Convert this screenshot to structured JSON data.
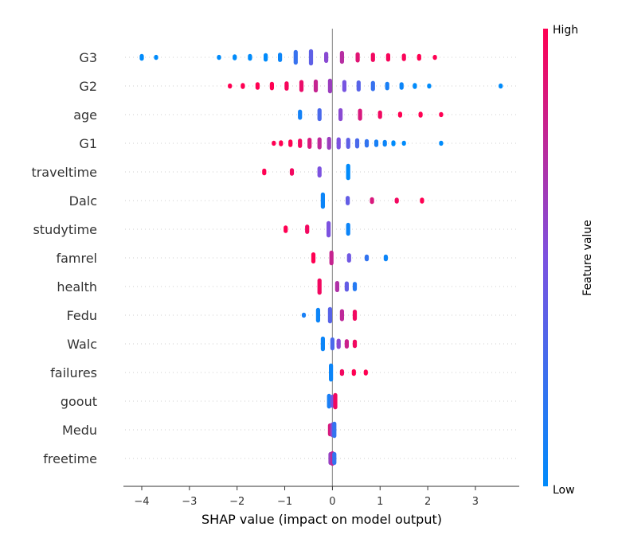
{
  "chart_data": {
    "type": "scatter",
    "subtype": "shap-beeswarm-summary",
    "xlabel": "SHAP value (impact on model output)",
    "xlim": [
      -4.35,
      3.9
    ],
    "xticks": [
      -4,
      -3,
      -2,
      -1,
      0,
      1,
      2,
      3
    ],
    "colorbar": {
      "label": "Feature value",
      "high": "High",
      "low": "Low",
      "low_color": "#008bfb",
      "high_color": "#ff0052"
    },
    "features": [
      {
        "name": "G3",
        "clusters": [
          [
            -4.0,
            0.0,
            3
          ],
          [
            -3.7,
            0.0,
            1
          ],
          [
            -2.38,
            0.0,
            1
          ],
          [
            -2.05,
            0.0,
            2
          ],
          [
            -1.73,
            0.0,
            3
          ],
          [
            -1.4,
            0.0,
            5
          ],
          [
            -1.1,
            0.05,
            6
          ],
          [
            -0.77,
            0.22,
            12
          ],
          [
            -0.45,
            0.38,
            14
          ],
          [
            -0.13,
            0.55,
            8
          ],
          [
            0.2,
            0.72,
            10
          ],
          [
            0.53,
            0.88,
            7
          ],
          [
            0.85,
            0.95,
            6
          ],
          [
            1.17,
            0.97,
            5
          ],
          [
            1.5,
            0.98,
            4
          ],
          [
            1.82,
            1.0,
            3
          ],
          [
            2.15,
            1.0,
            1
          ]
        ]
      },
      {
        "name": "G2",
        "clusters": [
          [
            -2.15,
            1.0,
            1
          ],
          [
            -1.88,
            1.0,
            2
          ],
          [
            -1.57,
            1.0,
            4
          ],
          [
            -1.27,
            1.0,
            5
          ],
          [
            -0.96,
            0.97,
            6
          ],
          [
            -0.65,
            0.92,
            9
          ],
          [
            -0.35,
            0.78,
            10
          ],
          [
            -0.05,
            0.62,
            12
          ],
          [
            0.25,
            0.48,
            9
          ],
          [
            0.55,
            0.35,
            8
          ],
          [
            0.85,
            0.22,
            7
          ],
          [
            1.15,
            0.1,
            5
          ],
          [
            1.45,
            0.05,
            4
          ],
          [
            1.73,
            0.0,
            2
          ],
          [
            2.03,
            0.0,
            1
          ],
          [
            3.53,
            0.0,
            1
          ]
        ]
      },
      {
        "name": "age",
        "clusters": [
          [
            -0.68,
            0.08,
            7
          ],
          [
            -0.27,
            0.3,
            10
          ],
          [
            0.17,
            0.55,
            10
          ],
          [
            0.58,
            0.85,
            9
          ],
          [
            1.0,
            0.95,
            5
          ],
          [
            1.42,
            1.0,
            2
          ],
          [
            1.85,
            1.0,
            2
          ],
          [
            2.28,
            1.0,
            1
          ]
        ]
      },
      {
        "name": "G1",
        "clusters": [
          [
            -1.23,
            1.0,
            1
          ],
          [
            -1.08,
            1.0,
            2
          ],
          [
            -0.88,
            1.0,
            4
          ],
          [
            -0.68,
            0.95,
            6
          ],
          [
            -0.48,
            0.85,
            8
          ],
          [
            -0.27,
            0.75,
            9
          ],
          [
            -0.07,
            0.62,
            10
          ],
          [
            0.13,
            0.5,
            9
          ],
          [
            0.33,
            0.38,
            8
          ],
          [
            0.52,
            0.3,
            7
          ],
          [
            0.72,
            0.2,
            5
          ],
          [
            0.92,
            0.1,
            4
          ],
          [
            1.1,
            0.05,
            3
          ],
          [
            1.28,
            0.0,
            2
          ],
          [
            1.5,
            0.0,
            1
          ],
          [
            2.28,
            0.0,
            1
          ]
        ]
      },
      {
        "name": "traveltime",
        "clusters": [
          [
            -1.43,
            1.0,
            3
          ],
          [
            -0.85,
            0.95,
            4
          ],
          [
            -0.27,
            0.5,
            8
          ],
          [
            0.33,
            0.0,
            14
          ]
        ]
      },
      {
        "name": "Dalc",
        "clusters": [
          [
            -0.2,
            0.05,
            14
          ],
          [
            0.32,
            0.4,
            6
          ],
          [
            0.83,
            0.85,
            3
          ],
          [
            1.35,
            0.95,
            2
          ],
          [
            1.88,
            1.0,
            2
          ]
        ]
      },
      {
        "name": "studytime",
        "clusters": [
          [
            -0.98,
            1.0,
            4
          ],
          [
            -0.53,
            0.95,
            6
          ],
          [
            -0.08,
            0.5,
            14
          ],
          [
            0.33,
            0.05,
            10
          ]
        ]
      },
      {
        "name": "famrel",
        "clusters": [
          [
            -0.4,
            1.0,
            8
          ],
          [
            -0.02,
            0.78,
            12
          ],
          [
            0.35,
            0.45,
            6
          ],
          [
            0.72,
            0.2,
            3
          ],
          [
            1.12,
            0.05,
            3
          ]
        ]
      },
      {
        "name": "health",
        "clusters": [
          [
            -0.27,
            0.95,
            14
          ],
          [
            0.1,
            0.7,
            8
          ],
          [
            0.3,
            0.4,
            7
          ],
          [
            0.47,
            0.15,
            6
          ]
        ]
      },
      {
        "name": "Fedu",
        "clusters": [
          [
            -0.6,
            0.1,
            1
          ],
          [
            -0.3,
            0.05,
            12
          ],
          [
            -0.05,
            0.35,
            14
          ],
          [
            0.2,
            0.75,
            9
          ],
          [
            0.47,
            0.95,
            8
          ]
        ]
      },
      {
        "name": "Walc",
        "clusters": [
          [
            -0.2,
            0.05,
            12
          ],
          [
            0.0,
            0.3,
            10
          ],
          [
            0.13,
            0.55,
            7
          ],
          [
            0.3,
            0.8,
            6
          ],
          [
            0.47,
            0.95,
            5
          ]
        ]
      },
      {
        "name": "failures",
        "clusters": [
          [
            -0.03,
            0.05,
            16
          ],
          [
            0.2,
            0.95,
            3
          ],
          [
            0.45,
            1.0,
            3
          ],
          [
            0.7,
            1.0,
            2
          ]
        ]
      },
      {
        "name": "goout",
        "clusters": [
          [
            -0.07,
            0.1,
            12
          ],
          [
            0.0,
            0.45,
            10
          ],
          [
            0.06,
            0.95,
            14
          ]
        ]
      },
      {
        "name": "Medu",
        "clusters": [
          [
            -0.05,
            0.85,
            10
          ],
          [
            0.0,
            0.55,
            12
          ],
          [
            0.04,
            0.2,
            14
          ]
        ]
      },
      {
        "name": "freetime",
        "clusters": [
          [
            -0.04,
            0.6,
            10
          ],
          [
            0.0,
            0.75,
            12
          ],
          [
            0.04,
            0.2,
            10
          ]
        ]
      }
    ]
  }
}
